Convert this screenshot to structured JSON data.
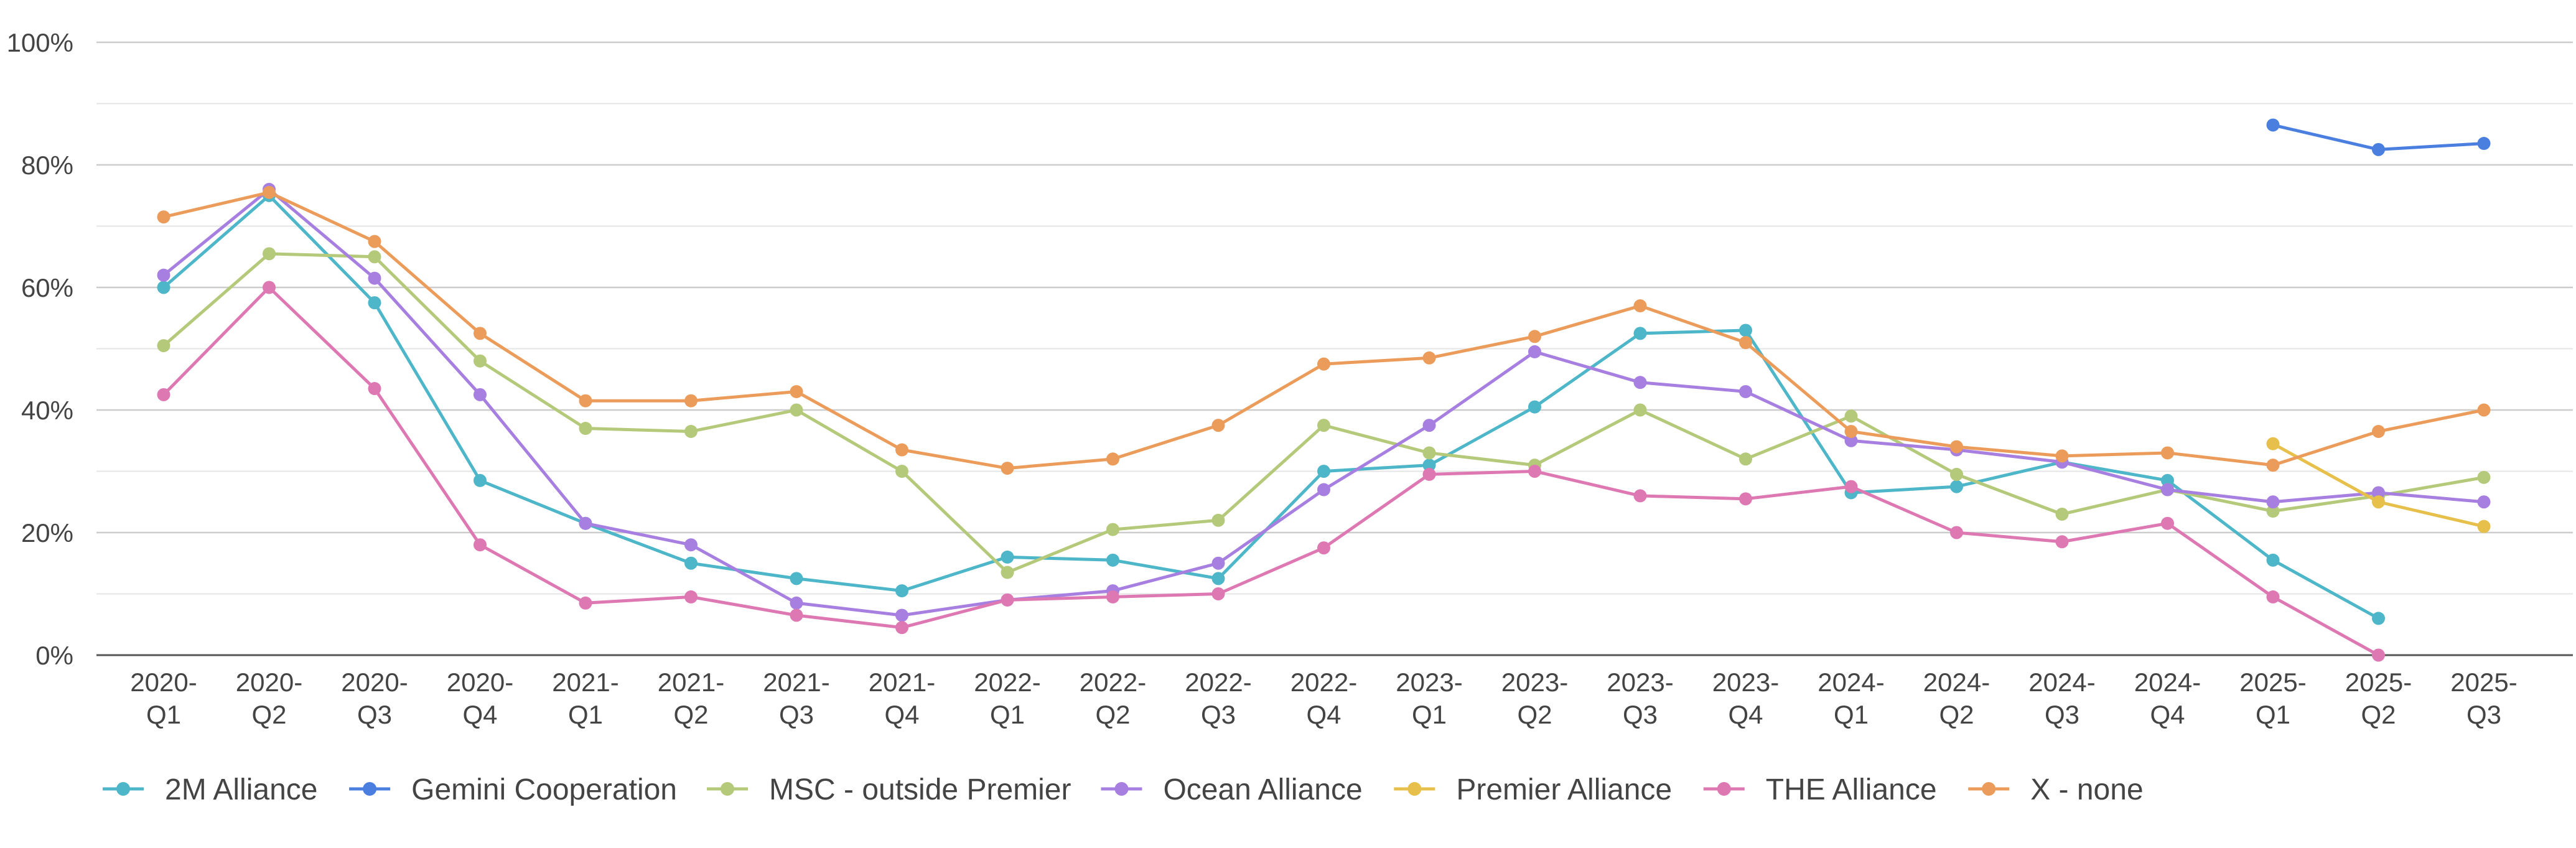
{
  "chart_data": {
    "type": "line",
    "title": "",
    "xlabel": "",
    "ylabel": "",
    "ylim": [
      0,
      100
    ],
    "y_ticks": [
      "0%",
      "20%",
      "40%",
      "60%",
      "80%",
      "100%"
    ],
    "grid": true,
    "legend_position": "bottom",
    "categories": [
      [
        "2020-",
        "Q1"
      ],
      [
        "2020-",
        "Q2"
      ],
      [
        "2020-",
        "Q3"
      ],
      [
        "2020-",
        "Q4"
      ],
      [
        "2021-",
        "Q1"
      ],
      [
        "2021-",
        "Q2"
      ],
      [
        "2021-",
        "Q3"
      ],
      [
        "2021-",
        "Q4"
      ],
      [
        "2022-",
        "Q1"
      ],
      [
        "2022-",
        "Q2"
      ],
      [
        "2022-",
        "Q3"
      ],
      [
        "2022-",
        "Q4"
      ],
      [
        "2023-",
        "Q1"
      ],
      [
        "2023-",
        "Q2"
      ],
      [
        "2023-",
        "Q3"
      ],
      [
        "2023-",
        "Q4"
      ],
      [
        "2024-",
        "Q1"
      ],
      [
        "2024-",
        "Q2"
      ],
      [
        "2024-",
        "Q3"
      ],
      [
        "2024-",
        "Q4"
      ],
      [
        "2025-",
        "Q1"
      ],
      [
        "2025-",
        "Q2"
      ],
      [
        "2025-",
        "Q3"
      ]
    ],
    "series": [
      {
        "name": "2M Alliance",
        "color": "#4db6c8",
        "values": [
          60,
          75,
          57.5,
          28.5,
          21.5,
          15,
          12.5,
          10.5,
          16,
          15.5,
          12.5,
          30,
          31,
          40.5,
          52.5,
          53,
          26.5,
          27.5,
          31.5,
          28.5,
          15.5,
          6,
          null
        ]
      },
      {
        "name": "Gemini Cooperation",
        "color": "#4a7fe0",
        "values": [
          null,
          null,
          null,
          null,
          null,
          null,
          null,
          null,
          null,
          null,
          null,
          null,
          null,
          null,
          null,
          null,
          null,
          null,
          null,
          null,
          86.5,
          82.5,
          83.5
        ]
      },
      {
        "name": "MSC - outside Premier",
        "color": "#b5c97a",
        "values": [
          50.5,
          65.5,
          65,
          48,
          37,
          36.5,
          40,
          30,
          13.5,
          20.5,
          22,
          37.5,
          33,
          31,
          40,
          32,
          39,
          29.5,
          23,
          27,
          23.5,
          26,
          29
        ]
      },
      {
        "name": "Ocean Alliance",
        "color": "#a77fe0",
        "values": [
          62,
          76,
          61.5,
          42.5,
          21.5,
          18,
          8.5,
          6.5,
          9,
          10.5,
          15,
          27,
          37.5,
          49.5,
          44.5,
          43,
          35,
          33.5,
          31.5,
          27,
          25,
          26.5,
          25
        ]
      },
      {
        "name": "Premier Alliance",
        "color": "#e6c04a",
        "values": [
          null,
          null,
          null,
          null,
          null,
          null,
          null,
          null,
          null,
          null,
          null,
          null,
          null,
          null,
          null,
          null,
          null,
          null,
          null,
          null,
          34.5,
          25,
          21
        ]
      },
      {
        "name": "THE Alliance",
        "color": "#de78b2",
        "values": [
          42.5,
          60,
          43.5,
          18,
          8.5,
          9.5,
          6.5,
          4.5,
          9,
          9.5,
          10,
          17.5,
          29.5,
          30,
          26,
          25.5,
          27.5,
          20,
          18.5,
          21.5,
          9.5,
          0,
          null
        ]
      },
      {
        "name": "X - none",
        "color": "#ec9c5a",
        "values": [
          71.5,
          75.5,
          67.5,
          52.5,
          41.5,
          41.5,
          43,
          33.5,
          30.5,
          32,
          37.5,
          47.5,
          48.5,
          52,
          57,
          51,
          36.5,
          34,
          32.5,
          33,
          31,
          36.5,
          40
        ]
      }
    ]
  }
}
